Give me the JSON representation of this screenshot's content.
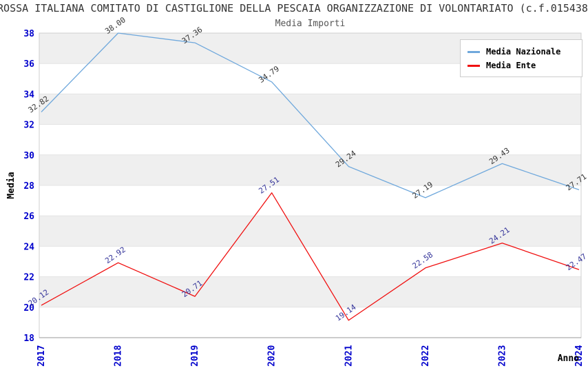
{
  "header": {
    "title": "ROSSA ITALIANA COMITATO DI CASTIGLIONE DELLA PESCAIA ORGANIZZAZIONE DI VOLONTARIATO (c.f.015438",
    "subtitle": "Media Importi"
  },
  "chart_data": {
    "type": "line",
    "title": "Media Importi",
    "categories": [
      "2017",
      "2018",
      "2019",
      "2020",
      "2021",
      "2022",
      "2023",
      "2024"
    ],
    "series": [
      {
        "name": "Media Nazionale",
        "color": "#6FA8DC",
        "label_color": "#333333",
        "values": [
          32.82,
          38.0,
          37.36,
          34.79,
          29.24,
          27.19,
          29.43,
          27.71
        ]
      },
      {
        "name": "Media Ente",
        "color": "#F01010",
        "label_color": "#333399",
        "values": [
          20.12,
          22.92,
          20.71,
          27.51,
          19.14,
          22.58,
          24.21,
          22.47
        ]
      }
    ],
    "xlabel": "Anno",
    "ylabel": "Media",
    "ylim": [
      18,
      38
    ],
    "ytick_step": 2,
    "yticks": [
      18,
      20,
      22,
      24,
      26,
      28,
      30,
      32,
      34,
      36,
      38
    ],
    "grid": "horizontal-bands",
    "band_colors": [
      "#EFEFEF",
      "#FFFFFF"
    ],
    "tick_label_color": "#0000CC",
    "legend_position": "top-right",
    "legend": [
      "Media Nazionale",
      "Media Ente"
    ]
  }
}
